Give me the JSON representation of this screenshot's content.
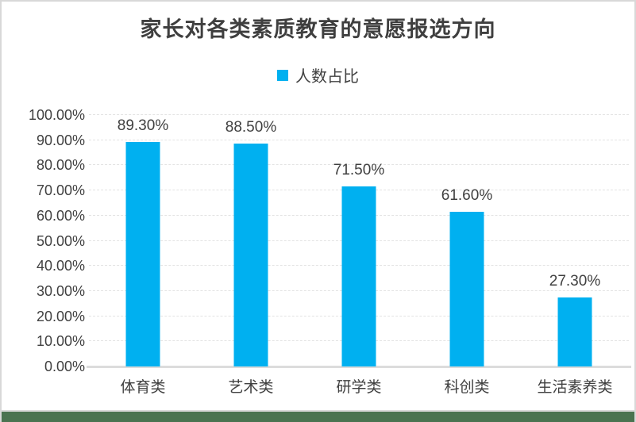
{
  "chart_data": {
    "type": "bar",
    "title": "家长对各类素质教育的意愿报选方向",
    "legend_label": "人数占比",
    "legend_position": "top",
    "categories": [
      "体育类",
      "艺术类",
      "研学类",
      "科创类",
      "生活素养类"
    ],
    "series": [
      {
        "name": "人数占比",
        "values": [
          89.3,
          88.5,
          71.5,
          61.6,
          27.3
        ]
      }
    ],
    "data_labels": [
      "89.30%",
      "88.50%",
      "71.50%",
      "61.60%",
      "27.30%"
    ],
    "xlabel": "",
    "ylabel": "",
    "ylim": [
      0,
      100
    ],
    "ytick_values": [
      0,
      10,
      20,
      30,
      40,
      50,
      60,
      70,
      80,
      90,
      100
    ],
    "ytick_labels": [
      "0.00%",
      "10.00%",
      "20.00%",
      "30.00%",
      "40.00%",
      "50.00%",
      "60.00%",
      "70.00%",
      "80.00%",
      "90.00%",
      "100.00%"
    ],
    "grid": "horizontal-dashed",
    "bar_color": "#00b0f0"
  },
  "colors": {
    "bar": "#00b0f0",
    "title_text": "#3f3f3f",
    "axis_text": "#404040",
    "gridline": "#e3e3e3",
    "axis_line": "#dcdcdc",
    "frame_border": "#d8d8d8",
    "footer_accent": "#4a7350"
  }
}
